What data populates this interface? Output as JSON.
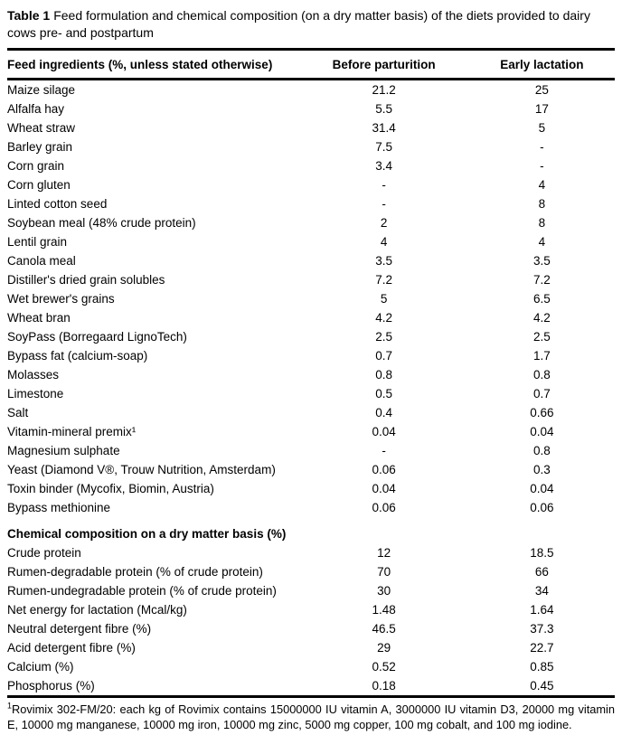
{
  "caption": {
    "label": "Table 1",
    "text": "Feed formulation and chemical composition (on a dry matter basis) of the diets provided to dairy cows pre- and postpartum"
  },
  "table": {
    "columns": [
      "Feed ingredients (%, unless stated otherwise)",
      "Before parturition",
      "Early lactation"
    ],
    "ingredients": [
      {
        "name": "Maize silage",
        "before": "21.2",
        "early": "25"
      },
      {
        "name": "Alfalfa hay",
        "before": "5.5",
        "early": "17"
      },
      {
        "name": "Wheat straw",
        "before": "31.4",
        "early": "5"
      },
      {
        "name": "Barley grain",
        "before": "7.5",
        "early": "-"
      },
      {
        "name": "Corn grain",
        "before": "3.4",
        "early": "-"
      },
      {
        "name": "Corn gluten",
        "before": "-",
        "early": "4"
      },
      {
        "name": "Linted cotton seed",
        "before": "-",
        "early": "8"
      },
      {
        "name": "Soybean meal (48% crude protein)",
        "before": "2",
        "early": "8"
      },
      {
        "name": "Lentil grain",
        "before": "4",
        "early": "4"
      },
      {
        "name": "Canola meal",
        "before": "3.5",
        "early": "3.5"
      },
      {
        "name": "Distiller's dried grain solubles",
        "before": "7.2",
        "early": "7.2"
      },
      {
        "name": "Wet brewer's grains",
        "before": "5",
        "early": "6.5"
      },
      {
        "name": "Wheat bran",
        "before": "4.2",
        "early": "4.2"
      },
      {
        "name": "SoyPass (Borregaard LignoTech)",
        "before": "2.5",
        "early": "2.5"
      },
      {
        "name": "Bypass fat (calcium-soap)",
        "before": "0.7",
        "early": "1.7"
      },
      {
        "name": "Molasses",
        "before": "0.8",
        "early": "0.8"
      },
      {
        "name": "Limestone",
        "before": "0.5",
        "early": "0.7"
      },
      {
        "name": "Salt",
        "before": "0.4",
        "early": "0.66"
      },
      {
        "name": "Vitamin-mineral premix¹",
        "before": "0.04",
        "early": "0.04"
      },
      {
        "name": "Magnesium sulphate",
        "before": "-",
        "early": "0.8"
      },
      {
        "name": "Yeast (Diamond V®, Trouw Nutrition, Amsterdam)",
        "before": "0.06",
        "early": "0.3"
      },
      {
        "name": "Toxin binder (Mycofix, Biomin, Austria)",
        "before": "0.04",
        "early": "0.04"
      },
      {
        "name": "Bypass methionine",
        "before": "0.06",
        "early": "0.06"
      }
    ],
    "section_header": "Chemical composition on a dry matter basis (%)",
    "composition": [
      {
        "name": "Crude protein",
        "before": "12",
        "early": "18.5"
      },
      {
        "name": "Rumen-degradable protein (% of crude protein)",
        "before": "70",
        "early": "66"
      },
      {
        "name": "Rumen-undegradable protein (% of crude protein)",
        "before": "30",
        "early": "34"
      },
      {
        "name": "Net energy for lactation (Mcal/kg)",
        "before": "1.48",
        "early": "1.64"
      },
      {
        "name": "Neutral detergent fibre (%)",
        "before": "46.5",
        "early": "37.3"
      },
      {
        "name": "Acid detergent fibre (%)",
        "before": "29",
        "early": "22.7"
      },
      {
        "name": "Calcium (%)",
        "before": "0.52",
        "early": "0.85"
      },
      {
        "name": "Phosphorus (%)",
        "before": "0.18",
        "early": "0.45"
      }
    ]
  },
  "footnote": {
    "marker": "1",
    "text": "Rovimix 302-FM/20: each kg of Rovimix contains 15000000 IU vitamin A, 3000000 IU vitamin D3, 20000 mg vitamin E, 10000 mg manganese, 10000 mg iron, 10000 mg zinc, 5000 mg copper, 100 mg cobalt, and 100 mg iodine."
  }
}
